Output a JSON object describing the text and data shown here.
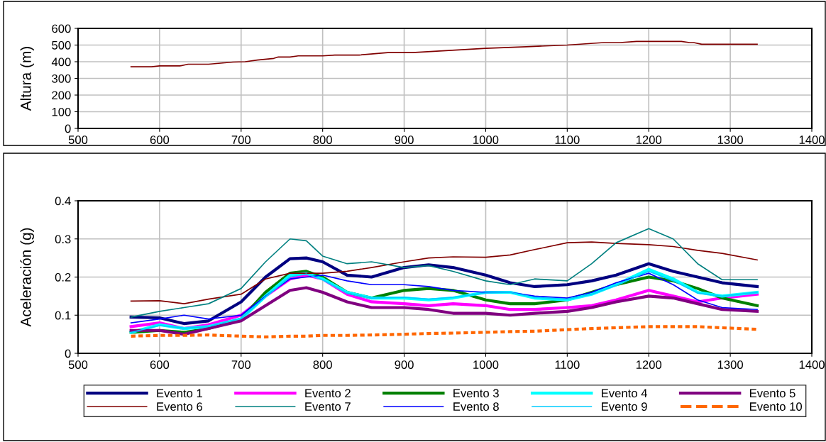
{
  "chart_data": [
    {
      "type": "line",
      "ylabel": "Altura (m)",
      "xlim": [
        500,
        1400
      ],
      "xticks": [
        500,
        600,
        700,
        800,
        900,
        1000,
        1100,
        1200,
        1300,
        1400
      ],
      "ylim": [
        0,
        600
      ],
      "yticks": [
        0,
        100,
        200,
        300,
        400,
        500,
        600
      ],
      "grid": true,
      "legend": false,
      "series": [
        {
          "color": "#800000",
          "x": [
            565,
            590,
            600,
            625,
            635,
            660,
            690,
            705,
            720,
            740,
            745,
            760,
            770,
            800,
            815,
            845,
            880,
            910,
            1000,
            1050,
            1100,
            1145,
            1165,
            1185,
            1240,
            1250,
            1255,
            1265,
            1333
          ],
          "values": [
            370,
            370,
            375,
            375,
            385,
            385,
            398,
            400,
            410,
            420,
            428,
            428,
            435,
            435,
            440,
            440,
            455,
            455,
            480,
            490,
            500,
            515,
            515,
            522,
            522,
            515,
            515,
            505,
            505
          ]
        }
      ]
    },
    {
      "type": "line",
      "ylabel": "Aceleración (g)",
      "xlim": [
        500,
        1400
      ],
      "xticks": [
        500,
        600,
        700,
        800,
        900,
        1000,
        1100,
        1200,
        1300,
        1400
      ],
      "ylim": [
        0,
        0.4
      ],
      "yticks": [
        0,
        0.1,
        0.2,
        0.3,
        0.4
      ],
      "grid": true,
      "legend": "bottom",
      "x": [
        565,
        600,
        630,
        660,
        700,
        730,
        760,
        780,
        800,
        830,
        860,
        900,
        930,
        960,
        1000,
        1030,
        1060,
        1100,
        1130,
        1160,
        1200,
        1230,
        1260,
        1290,
        1333
      ],
      "series": [
        {
          "name": "Evento 1",
          "color": "#000080",
          "values": [
            0.095,
            0.093,
            0.078,
            0.085,
            0.135,
            0.2,
            0.248,
            0.25,
            0.24,
            0.205,
            0.2,
            0.225,
            0.232,
            0.225,
            0.205,
            0.185,
            0.175,
            0.18,
            0.19,
            0.205,
            0.235,
            0.215,
            0.2,
            0.185,
            0.175
          ]
        },
        {
          "name": "Evento 2",
          "color": "#ff00ff",
          "values": [
            0.07,
            0.08,
            0.065,
            0.075,
            0.1,
            0.15,
            0.195,
            0.205,
            0.195,
            0.155,
            0.135,
            0.13,
            0.125,
            0.13,
            0.125,
            0.115,
            0.115,
            0.12,
            0.125,
            0.14,
            0.165,
            0.15,
            0.135,
            0.145,
            0.155
          ]
        },
        {
          "name": "Evento 3",
          "color": "#008000",
          "values": [
            0.055,
            0.06,
            0.055,
            0.065,
            0.09,
            0.16,
            0.21,
            0.215,
            0.2,
            0.16,
            0.145,
            0.165,
            0.17,
            0.165,
            0.14,
            0.13,
            0.13,
            0.14,
            0.16,
            0.18,
            0.2,
            0.19,
            0.17,
            0.145,
            0.125
          ]
        },
        {
          "name": "Evento 4",
          "color": "#00ffff",
          "values": [
            0.055,
            0.075,
            0.065,
            0.07,
            0.09,
            0.15,
            0.205,
            0.21,
            0.195,
            0.16,
            0.145,
            0.145,
            0.14,
            0.145,
            0.16,
            0.16,
            0.145,
            0.14,
            0.155,
            0.18,
            0.22,
            0.195,
            0.16,
            0.15,
            0.16
          ]
        },
        {
          "name": "Evento 5",
          "color": "#800080",
          "values": [
            0.06,
            0.06,
            0.05,
            0.065,
            0.085,
            0.125,
            0.165,
            0.172,
            0.16,
            0.135,
            0.12,
            0.12,
            0.115,
            0.105,
            0.105,
            0.1,
            0.105,
            0.11,
            0.12,
            0.135,
            0.15,
            0.145,
            0.13,
            0.115,
            0.11
          ]
        },
        {
          "name": "Evento 6",
          "color": "#800000",
          "values": [
            0.137,
            0.138,
            0.13,
            0.142,
            0.155,
            0.195,
            0.21,
            0.21,
            0.21,
            0.215,
            0.225,
            0.24,
            0.25,
            0.253,
            0.252,
            0.258,
            0.272,
            0.29,
            0.292,
            0.288,
            0.285,
            0.28,
            0.27,
            0.262,
            0.245
          ]
        },
        {
          "name": "Evento 7",
          "color": "#008080",
          "values": [
            0.095,
            0.11,
            0.12,
            0.13,
            0.17,
            0.24,
            0.3,
            0.295,
            0.255,
            0.235,
            0.24,
            0.225,
            0.23,
            0.215,
            0.19,
            0.18,
            0.195,
            0.19,
            0.235,
            0.29,
            0.327,
            0.3,
            0.235,
            0.193,
            0.193
          ]
        },
        {
          "name": "Evento 8",
          "color": "#0000ff",
          "values": [
            0.08,
            0.09,
            0.1,
            0.09,
            0.1,
            0.15,
            0.195,
            0.2,
            0.205,
            0.19,
            0.18,
            0.18,
            0.175,
            0.165,
            0.16,
            0.16,
            0.15,
            0.145,
            0.16,
            0.185,
            0.21,
            0.18,
            0.14,
            0.12,
            0.115
          ]
        },
        {
          "name": "Evento 9",
          "color": "#00ccff",
          "values": [
            0.055,
            0.073,
            0.066,
            0.07,
            0.092,
            0.148,
            0.2,
            0.208,
            0.193,
            0.158,
            0.145,
            0.147,
            0.142,
            0.147,
            0.158,
            0.16,
            0.147,
            0.142,
            0.155,
            0.178,
            0.215,
            0.19,
            0.158,
            0.15,
            0.16
          ]
        },
        {
          "name": "Evento 10",
          "color": "#ff6600",
          "line_style": "dashed",
          "values": [
            0.045,
            0.047,
            0.047,
            0.048,
            0.045,
            0.043,
            0.045,
            0.045,
            0.047,
            0.047,
            0.048,
            0.05,
            0.052,
            0.053,
            0.055,
            0.057,
            0.058,
            0.062,
            0.065,
            0.067,
            0.07,
            0.07,
            0.07,
            0.067,
            0.063
          ]
        }
      ]
    }
  ]
}
